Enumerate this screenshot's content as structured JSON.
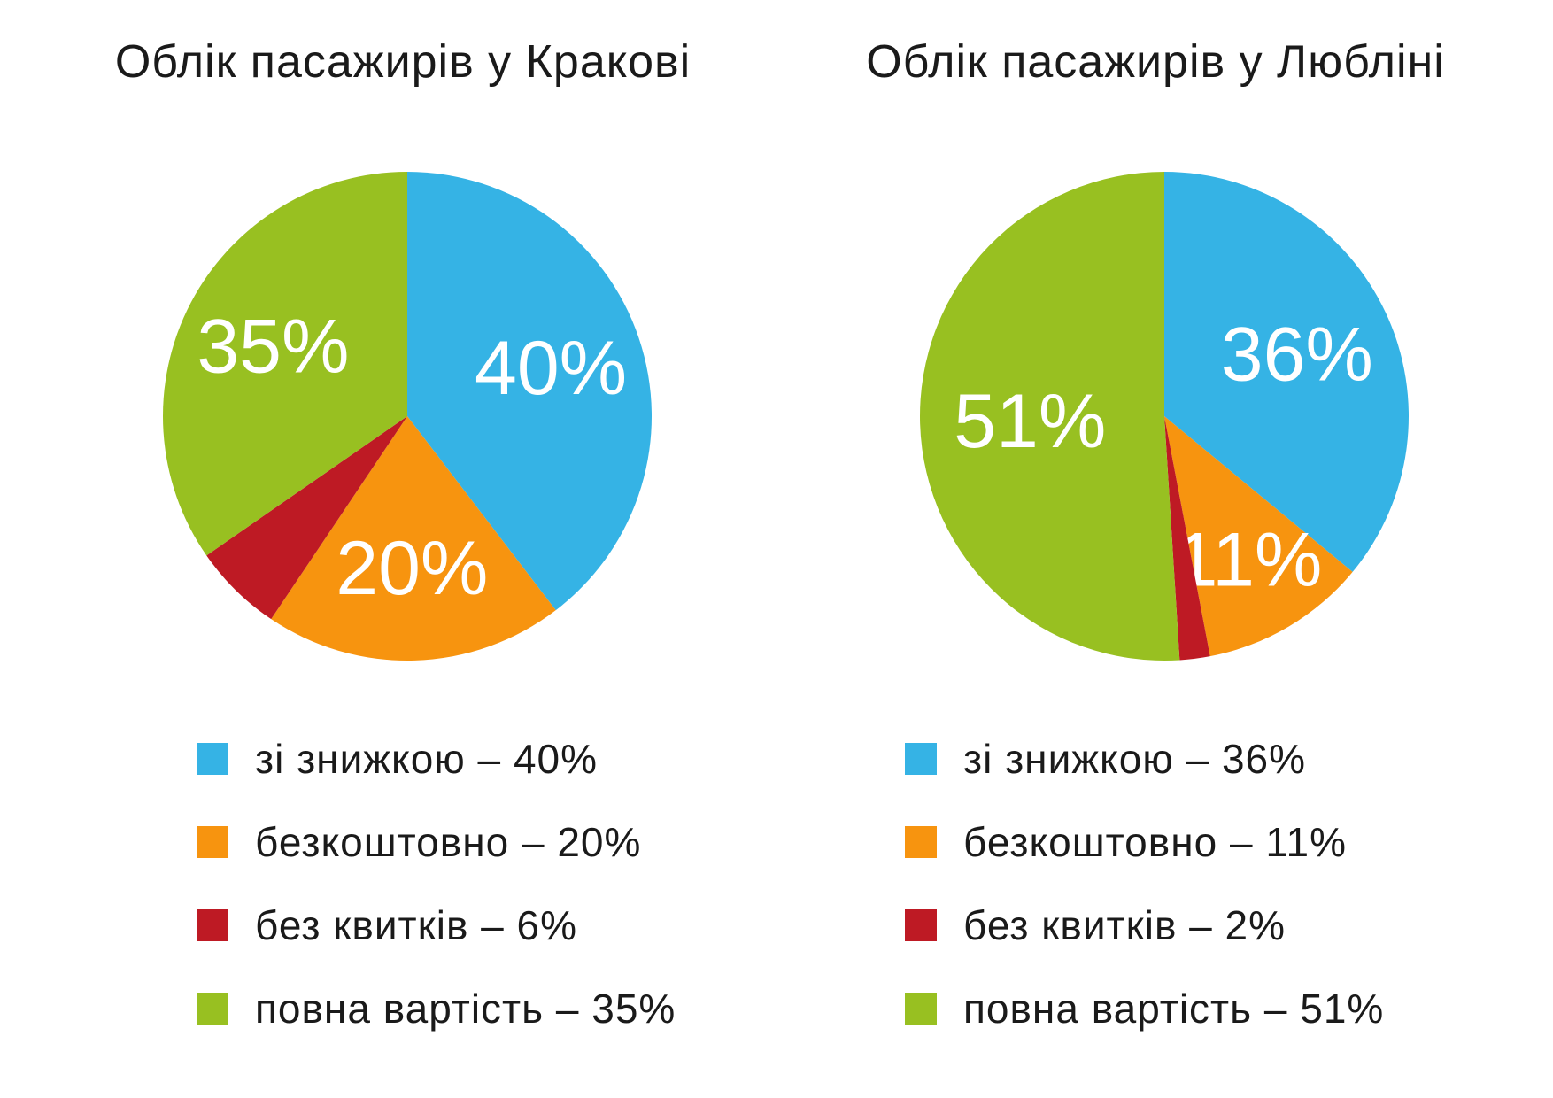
{
  "chart_data": [
    {
      "type": "pie",
      "title": "Облік пасажирів у Кракові",
      "slices": [
        {
          "name": "зі знижкою",
          "value": 40,
          "label": "40%",
          "color": "#35b3e5"
        },
        {
          "name": "безкоштовно",
          "value": 20,
          "label": "20%",
          "color": "#f7940f"
        },
        {
          "name": "без квитків",
          "value": 6,
          "label": "",
          "color": "#be1a24"
        },
        {
          "name": "повна вартість",
          "value": 35,
          "label": "35%",
          "color": "#98c021"
        }
      ],
      "legend": [
        {
          "label": "зі знижкою",
          "value": "40%"
        },
        {
          "label": "безкоштовно",
          "value": "20%"
        },
        {
          "label": "без квитків",
          "value": "6%"
        },
        {
          "label": "повна вартість",
          "value": "35%"
        }
      ]
    },
    {
      "type": "pie",
      "title": "Облік пасажирів у Любліні",
      "slices": [
        {
          "name": "зі знижкою",
          "value": 36,
          "label": "36%",
          "color": "#35b3e5"
        },
        {
          "name": "безкоштовно",
          "value": 11,
          "label": "11%",
          "color": "#f7940f"
        },
        {
          "name": "без квитків",
          "value": 2,
          "label": "",
          "color": "#be1a24"
        },
        {
          "name": "повна вартість",
          "value": 51,
          "label": "51%",
          "color": "#98c021"
        }
      ],
      "legend": [
        {
          "label": "зі знижкою",
          "value": "36%"
        },
        {
          "label": "безкоштовно",
          "value": "11%"
        },
        {
          "label": "без квитків",
          "value": "2%"
        },
        {
          "label": "повна вартість",
          "value": "51%"
        }
      ]
    }
  ]
}
